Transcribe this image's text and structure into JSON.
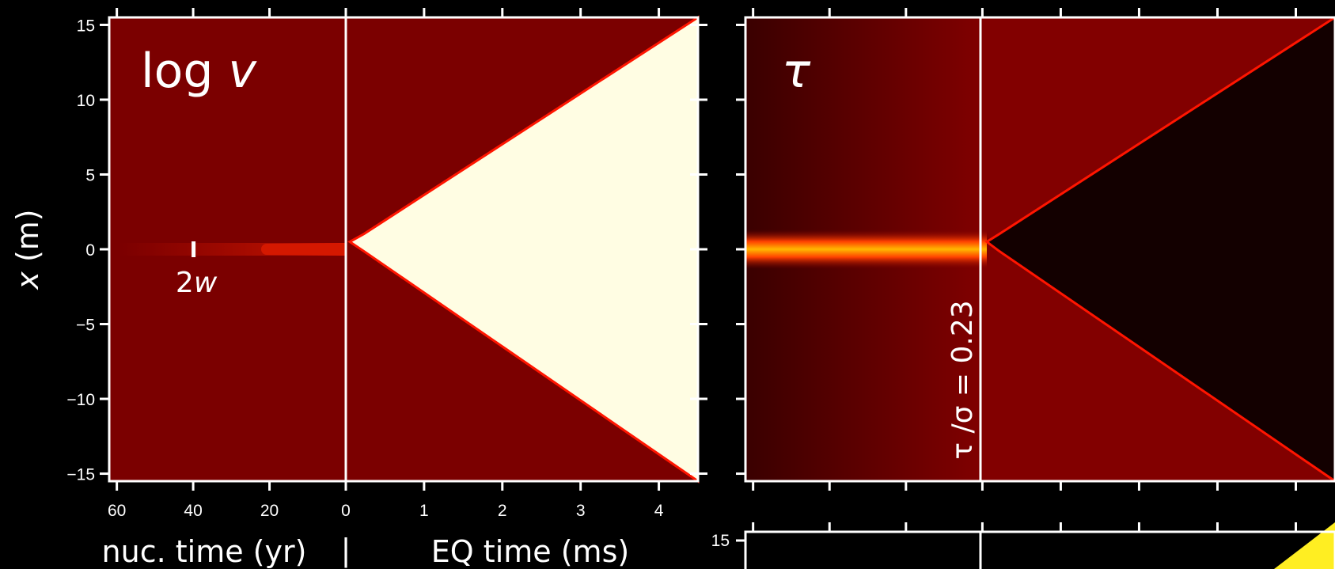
{
  "chart_data": [
    {
      "type": "heatmap",
      "panel_label": "log v",
      "panel_label_plain": "log",
      "panel_label_var": "v",
      "colormap": "hot",
      "ylabel_var": "x",
      "ylabel_unit": "(m)",
      "y_ticks": [
        15,
        10,
        5,
        0,
        -5,
        -10,
        -15
      ],
      "y_tick_labels": [
        "15",
        "10",
        "5",
        "0",
        "−5",
        "−10",
        "−15"
      ],
      "ylim": [
        -15.5,
        15.5
      ],
      "nucleation_axis": {
        "label": "nuc. time (yr)",
        "ticks": [
          60,
          40,
          20,
          0
        ],
        "tick_labels": [
          "60",
          "40",
          "20",
          "0"
        ],
        "range": [
          62,
          0
        ]
      },
      "earthquake_axis": {
        "label": "EQ time (ms)",
        "ticks": [
          1,
          2,
          3,
          4
        ],
        "tick_labels": [
          "1",
          "2",
          "3",
          "4"
        ],
        "range": [
          0,
          4.5
        ]
      },
      "axis_separator": "|",
      "annotation": {
        "text_num": "2",
        "text_var": "w",
        "at_nuc_time_yr": 40,
        "half_width_m": 0.5
      },
      "rupture_front": {
        "start_x_m": 0.5,
        "end_time_ms": 4.5,
        "end_x_top_m": 15.5,
        "end_x_bottom_m": -15.5
      },
      "colors": {
        "background": "#7b0000",
        "slip_region": "#fffde3",
        "front": "#ff1500",
        "nucleation_streak": "#c01000"
      }
    },
    {
      "type": "heatmap",
      "panel_label": "τ",
      "colormap": "hot",
      "vertical_annotation": "τ /σ = 0.23",
      "colors": {
        "background_left": "#3a0000",
        "background_right": "#800000",
        "stress_drop_region": "#130000",
        "stress_band": "#ffb000",
        "front": "#ff1500"
      }
    },
    {
      "type": "heatmap",
      "partial": true,
      "y_tick_labels": [
        "15"
      ],
      "colors": {
        "background": "#000000",
        "corner": "#ffee22"
      }
    }
  ]
}
